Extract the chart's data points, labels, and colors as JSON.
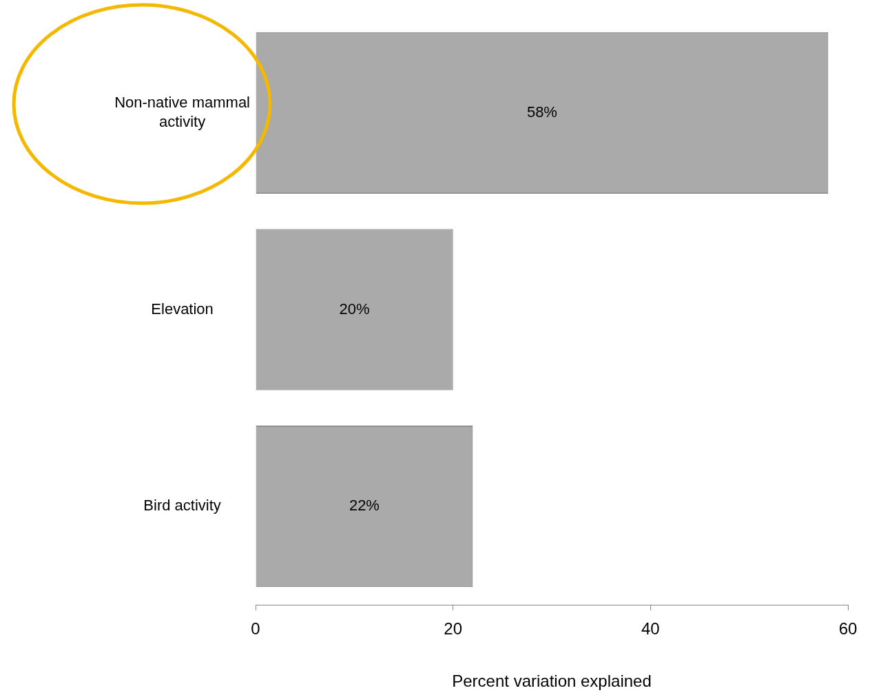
{
  "chart_data": {
    "type": "bar",
    "orientation": "horizontal",
    "categories": [
      "Non-native mammal activity",
      "Elevation",
      "Bird activity"
    ],
    "values": [
      58,
      20,
      22
    ],
    "value_labels": [
      "58%",
      "20%",
      "22%"
    ],
    "color": "#aaaaaa",
    "xlabel": "Percent variation explained",
    "xlim": [
      0,
      60
    ],
    "xticks": [
      0,
      20,
      40,
      60
    ],
    "grid": false,
    "legend": false
  }
}
